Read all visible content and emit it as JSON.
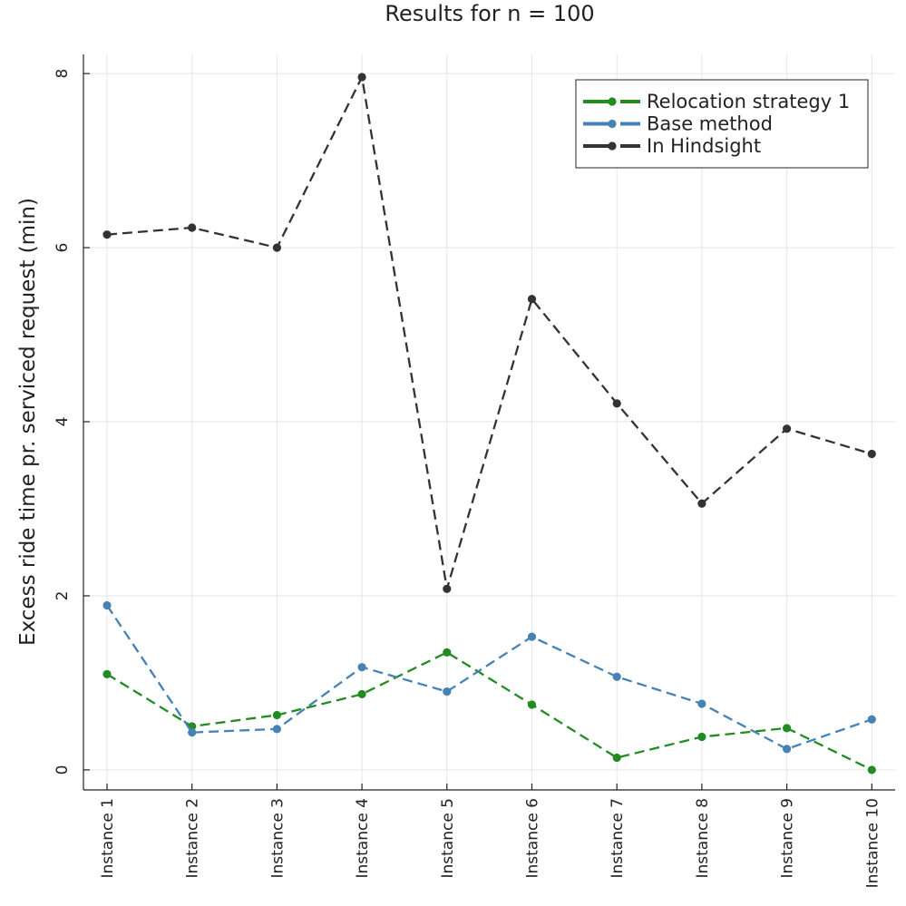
{
  "chart_data": {
    "type": "line",
    "title": "Results for n = 100",
    "xlabel": "",
    "ylabel": "Excess ride time pr. serviced request (min)",
    "categories": [
      "Instance 1",
      "Instance 2",
      "Instance 3",
      "Instance 4",
      "Instance 5",
      "Instance 6",
      "Instance 7",
      "Instance 8",
      "Instance 9",
      "Instance 10"
    ],
    "yticks": [
      "0",
      "2",
      "4",
      "6",
      "8"
    ],
    "ylim": [
      -0.23,
      8.22
    ],
    "grid": true,
    "legend_position": "top-right",
    "series": [
      {
        "name": "Relocation strategy 1",
        "color": "#228B22",
        "values": [
          1.1,
          0.5,
          0.63,
          0.87,
          1.35,
          0.75,
          0.14,
          0.38,
          0.48,
          0.0
        ]
      },
      {
        "name": "Base method",
        "color": "#4682B4",
        "values": [
          1.89,
          0.43,
          0.47,
          1.18,
          0.9,
          1.53,
          1.07,
          0.76,
          0.24,
          0.58
        ]
      },
      {
        "name": "In Hindsight",
        "color": "#333333",
        "values": [
          6.15,
          6.23,
          6.0,
          7.96,
          2.08,
          5.41,
          4.21,
          3.06,
          3.92,
          3.63
        ]
      }
    ]
  }
}
